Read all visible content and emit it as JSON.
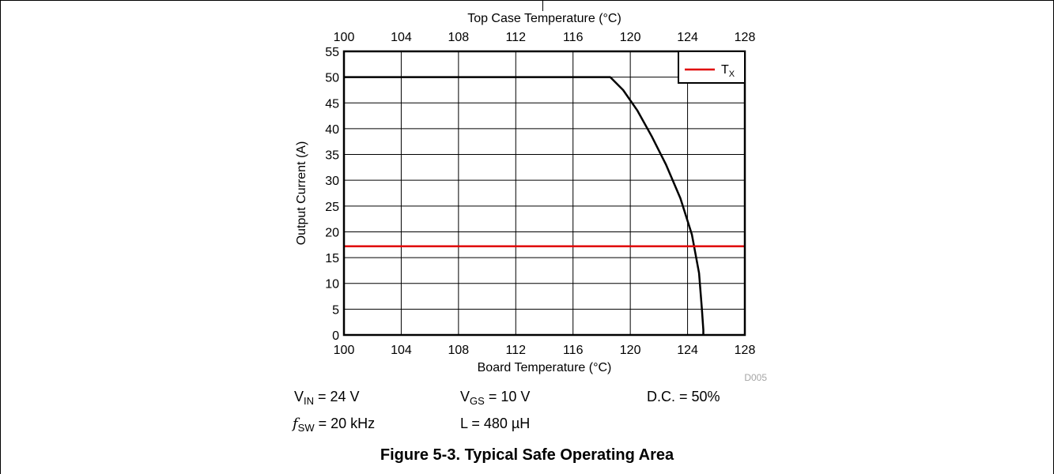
{
  "chart_data": {
    "type": "line",
    "title": "",
    "xlabel": "Board Temperature (°C)",
    "x2label": "Top Case Temperature (°C)",
    "ylabel": "Output Current (A)",
    "xlim": [
      100,
      128
    ],
    "ylim": [
      0,
      55
    ],
    "xticks": [
      100,
      104,
      108,
      112,
      116,
      120,
      124,
      128
    ],
    "yticks": [
      0,
      5,
      10,
      15,
      20,
      25,
      30,
      35,
      40,
      45,
      50,
      55
    ],
    "grid": true,
    "legend_position": "top-right",
    "series": [
      {
        "name": "",
        "color": "#000000",
        "x": [
          100,
          118.6,
          119.5,
          120.5,
          121.5,
          122.5,
          123.5,
          124.3,
          124.8,
          125.0,
          125.1,
          125.1
        ],
        "y": [
          50,
          50,
          47.5,
          43.5,
          38.5,
          33,
          26.5,
          19.5,
          12,
          5,
          1,
          0
        ]
      },
      {
        "name": "T",
        "name_sub": "X",
        "color": "#e00000",
        "x": [
          100,
          128
        ],
        "y": [
          17.2,
          17.2
        ]
      }
    ],
    "watermark": "D005"
  },
  "conditions": {
    "row1": {
      "vin": {
        "sym": "V",
        "sub": "IN",
        "val": " = 24 V"
      },
      "vgs": {
        "sym": "V",
        "sub": "GS",
        "val": " = 10 V"
      },
      "dc": "D.C. = 50%"
    },
    "row2": {
      "fsw": {
        "sym": "f",
        "sub": "SW",
        "val": " = 20 kHz"
      },
      "l": "L = 480 µH"
    }
  },
  "caption": "Figure 5-3. Typical Safe Operating Area"
}
